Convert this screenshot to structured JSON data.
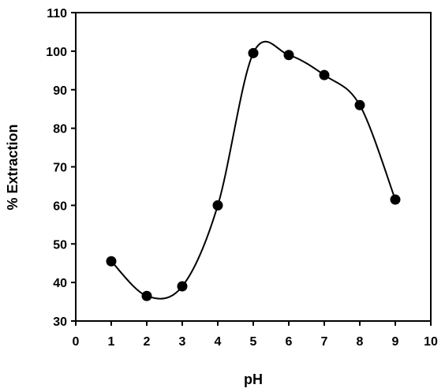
{
  "chart_data": {
    "type": "scatter",
    "title": "",
    "xlabel": "pH",
    "ylabel": "% Extraction",
    "xlim": [
      0,
      10
    ],
    "ylim": [
      30,
      110
    ],
    "xticks": [
      "0",
      "1",
      "2",
      "3",
      "4",
      "5",
      "6",
      "7",
      "8",
      "9",
      "10"
    ],
    "yticks": [
      "30",
      "40",
      "50",
      "60",
      "70",
      "80",
      "90",
      "100",
      "110"
    ],
    "grid": false,
    "legend": "none",
    "series": [
      {
        "x": [
          1,
          2,
          3,
          4,
          5,
          6,
          7,
          8,
          9
        ],
        "y": [
          45.5,
          36.5,
          39,
          60,
          99.5,
          99,
          93.8,
          86,
          61.5
        ],
        "marker": "filled-circle",
        "line": "smooth-curve",
        "color": "#000000"
      }
    ]
  }
}
